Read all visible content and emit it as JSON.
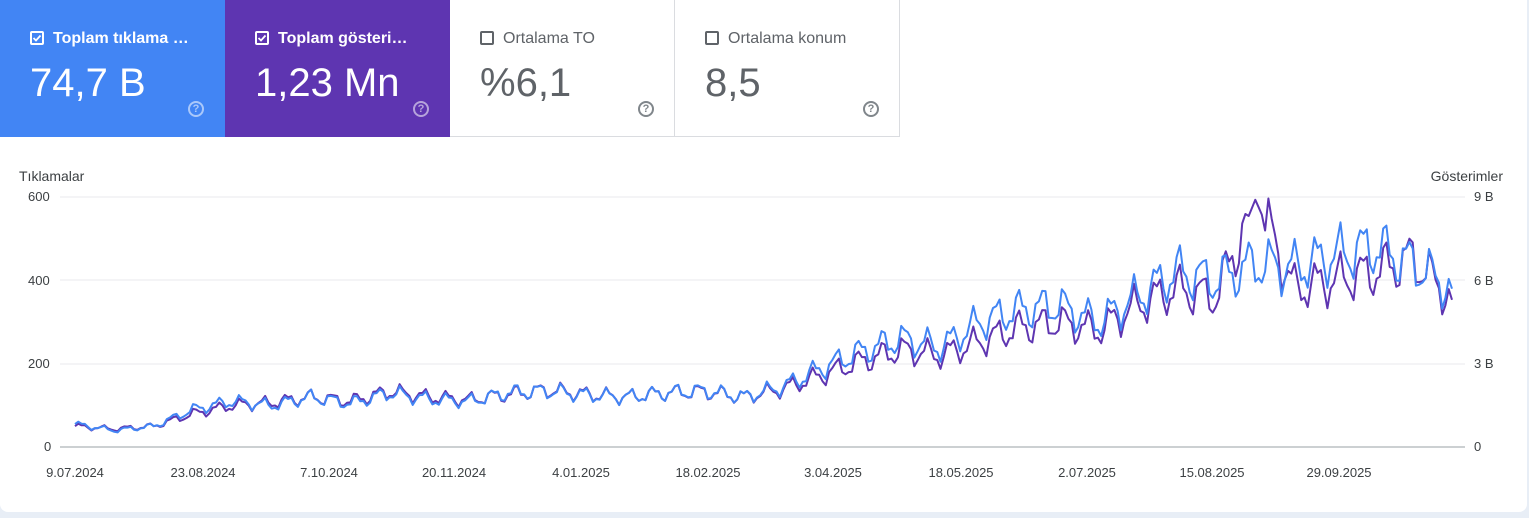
{
  "cards": [
    {
      "label": "Toplam tıklama s…",
      "value": "74,7 B",
      "checked": true,
      "help_icon": "help-circle-icon"
    },
    {
      "label": "Toplam gösterim …",
      "value": "1,23 Mn",
      "checked": true,
      "help_icon": "help-circle-icon"
    },
    {
      "label": "Ortalama TO",
      "value": "%6,1",
      "checked": false,
      "help_icon": "help-circle-icon"
    },
    {
      "label": "Ortalama konum",
      "value": "8,5",
      "checked": false,
      "help_icon": "help-circle-icon"
    }
  ],
  "colors": {
    "clicks": "#4285f4",
    "impressions": "#5e35b1",
    "grid": "#e8eaed"
  },
  "chart_data": {
    "type": "line",
    "left_axis_label": "Tıklamalar",
    "right_axis_label": "Gösterimler",
    "left_ticks": [
      "600",
      "400",
      "200",
      "0"
    ],
    "right_ticks": [
      "9 B",
      "6 B",
      "3 B",
      "0"
    ],
    "x_ticks": [
      "9.07.2024",
      "23.08.2024",
      "7.10.2024",
      "20.11.2024",
      "4.01.2025",
      "18.02.2025",
      "3.04.2025",
      "18.05.2025",
      "2.07.2025",
      "15.08.2025",
      "29.09.2025"
    ],
    "ylim_left": [
      0,
      600
    ],
    "ylim_right": [
      0,
      9000
    ],
    "x_range": [
      "2024-07-09",
      "2025-11-06"
    ],
    "grid": true,
    "series": [
      {
        "name": "Tıklamalar",
        "axis": "left",
        "color": "#4285f4",
        "values": [
          55,
          40,
          50,
          90,
          110,
          100,
          120,
          105,
          130,
          115,
          110,
          130,
          135,
          125,
          120,
          130,
          135,
          120,
          145,
          190,
          230,
          260,
          240,
          300,
          330,
          340,
          300,
          360,
          420,
          400,
          440,
          430,
          460,
          480,
          440,
          380
        ]
      },
      {
        "name": "Gösterimler",
        "axis": "right",
        "color": "#5e35b1",
        "values": [
          750,
          650,
          750,
          1200,
          1500,
          1600,
          1800,
          1650,
          2000,
          1800,
          1700,
          1900,
          2050,
          1900,
          1800,
          1950,
          2000,
          1800,
          2100,
          2600,
          3100,
          3500,
          3300,
          3800,
          4300,
          4500,
          4200,
          5100,
          5700,
          5400,
          8900,
          5700,
          6000,
          6300,
          6800,
          5300
        ]
      }
    ]
  }
}
